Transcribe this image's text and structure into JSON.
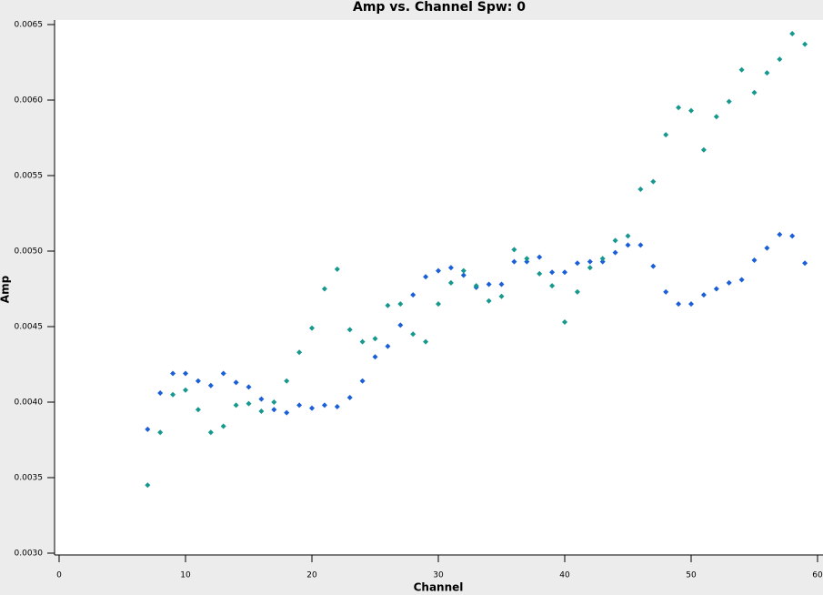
{
  "chart_data": {
    "type": "scatter",
    "title": "Amp vs. Channel Spw: 0",
    "xlabel": "Channel",
    "ylabel": "Amp",
    "xlim": [
      0,
      60
    ],
    "xticks": [
      0,
      10,
      20,
      30,
      40,
      50,
      60
    ],
    "ylim": [
      0.003,
      0.0065
    ],
    "yticks": [
      {
        "value": 0.003,
        "label": "0.0030"
      },
      {
        "value": 0.0035,
        "label": "0.0035"
      },
      {
        "value": 0.004,
        "label": "0.0040"
      },
      {
        "value": 0.0045,
        "label": "0.0045"
      },
      {
        "value": 0.005,
        "label": "0.0050"
      },
      {
        "value": 0.0055,
        "label": "0.0055"
      },
      {
        "value": 0.006,
        "label": "0.0060"
      },
      {
        "value": 0.0065,
        "label": "0.0065"
      }
    ],
    "x": [
      7,
      8,
      9,
      10,
      11,
      12,
      13,
      14,
      15,
      16,
      17,
      18,
      19,
      20,
      21,
      22,
      23,
      24,
      25,
      26,
      27,
      28,
      29,
      30,
      31,
      32,
      33,
      34,
      35,
      36,
      37,
      38,
      39,
      40,
      41,
      42,
      43,
      44,
      45,
      46,
      47,
      48,
      49,
      50,
      51,
      52,
      53,
      54,
      55,
      56,
      57,
      58,
      59
    ],
    "series": [
      {
        "color": "#1a5fd8",
        "values": [
          0.00382,
          0.00406,
          0.00419,
          0.00419,
          0.00414,
          0.00411,
          0.00419,
          0.00413,
          0.0041,
          0.00402,
          0.00395,
          0.00393,
          0.00398,
          0.00396,
          0.00398,
          0.00397,
          0.00403,
          0.00414,
          0.0043,
          0.00437,
          0.00451,
          0.00471,
          0.00483,
          0.00487,
          0.00489,
          0.00484,
          0.00476,
          0.00478,
          0.00478,
          0.00493,
          0.00493,
          0.00496,
          0.00486,
          0.00486,
          0.00492,
          0.00493,
          0.00493,
          0.00499,
          0.00504,
          0.00504,
          0.0049,
          0.00473,
          0.00465,
          0.00465,
          0.00471,
          0.00475,
          0.00479,
          0.00481,
          0.00494,
          0.00502,
          0.00511,
          0.0051,
          0.00492
        ]
      },
      {
        "color": "#16988f",
        "values": [
          0.00345,
          0.0038,
          0.00405,
          0.00408,
          0.00395,
          0.0038,
          0.00384,
          0.00398,
          0.00399,
          0.00394,
          0.004,
          0.00414,
          0.00433,
          0.00449,
          0.00475,
          0.00488,
          0.00448,
          0.0044,
          0.00442,
          0.00464,
          0.00465,
          0.00445,
          0.0044,
          0.00465,
          0.00479,
          0.00487,
          0.00477,
          0.00467,
          0.0047,
          0.00501,
          0.00495,
          0.00485,
          0.00477,
          0.00453,
          0.00473,
          0.00489,
          0.00495,
          0.00507,
          0.0051,
          0.00541,
          0.00546,
          0.00577,
          0.00595,
          0.00593,
          0.00567,
          0.00589,
          0.00599,
          0.0062,
          0.00605,
          0.00618,
          0.00627,
          0.00644,
          0.00637
        ]
      }
    ]
  }
}
